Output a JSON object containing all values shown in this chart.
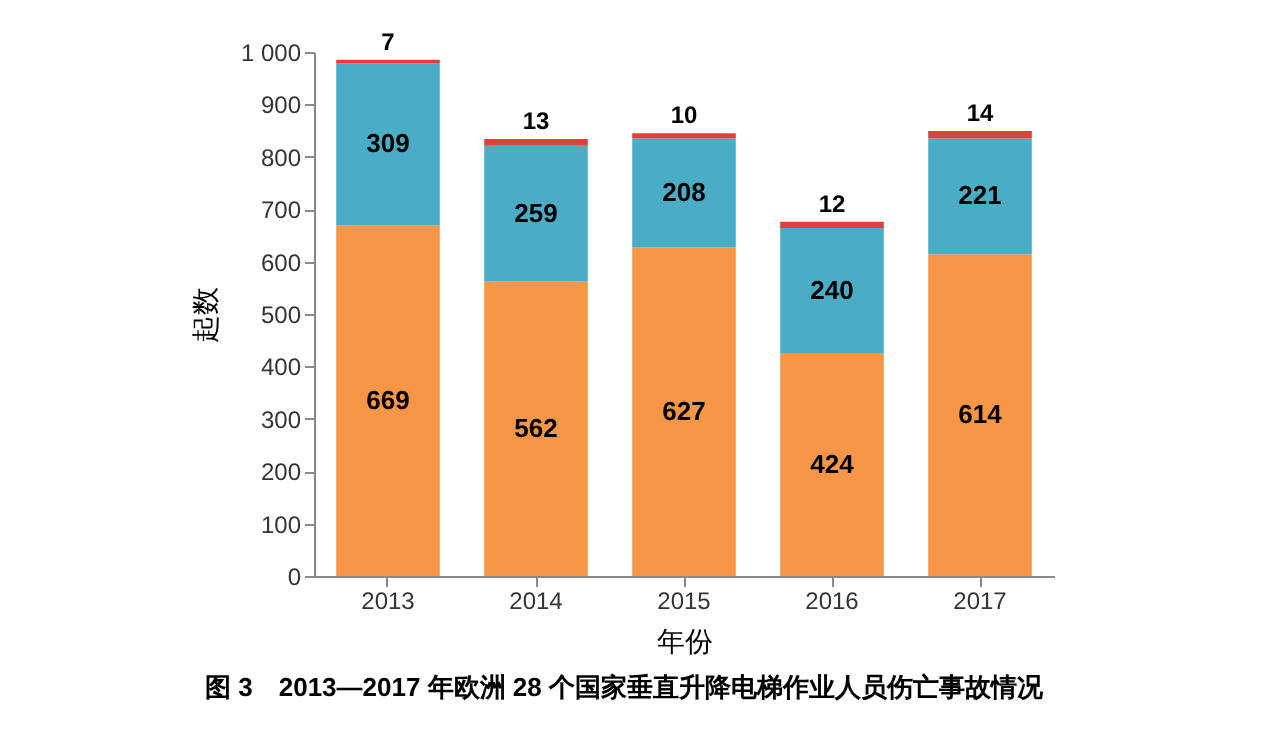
{
  "chart_data": {
    "type": "bar",
    "stacked": true,
    "title": "图 3　2013—2017 年欧洲 28 个国家垂直升降电梯作业人员伤亡事故情况",
    "xlabel": "年份",
    "ylabel": "起数",
    "categories": [
      "2013",
      "2014",
      "2015",
      "2016",
      "2017"
    ],
    "series": [
      {
        "color": "#f79646",
        "values": [
          669,
          562,
          627,
          424,
          614
        ]
      },
      {
        "color": "#4bacc6",
        "values": [
          309,
          259,
          208,
          240,
          221
        ]
      },
      {
        "color": "#e0403a",
        "values": [
          7,
          13,
          10,
          12,
          14
        ]
      }
    ],
    "ylim": [
      0,
      1000
    ],
    "yticks": [
      0,
      100,
      200,
      300,
      400,
      500,
      600,
      700,
      800,
      900,
      {
        "value": 1000,
        "label": "1 000"
      }
    ],
    "data_labels": true,
    "grid": false,
    "legend": false
  }
}
